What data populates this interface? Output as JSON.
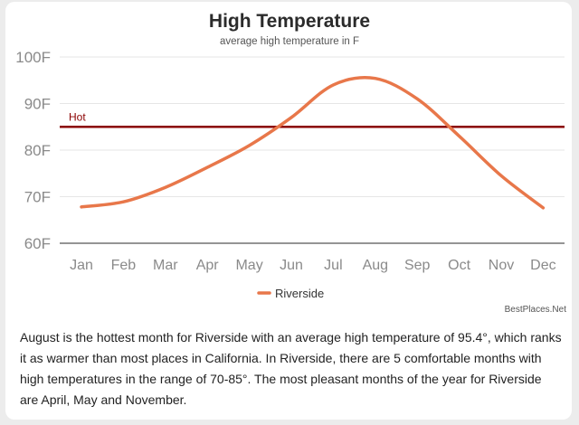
{
  "chart_data": {
    "type": "line",
    "title": "High Temperature",
    "subtitle": "average high temperature in F",
    "categories": [
      "Jan",
      "Feb",
      "Mar",
      "Apr",
      "May",
      "Jun",
      "Jul",
      "Aug",
      "Sep",
      "Oct",
      "Nov",
      "Dec"
    ],
    "series": [
      {
        "name": "Riverside",
        "color": "#e8774a",
        "values": [
          67.8,
          68.9,
          72.0,
          76.3,
          81.0,
          87.0,
          94.0,
          95.4,
          91.0,
          83.0,
          74.5,
          67.6
        ]
      }
    ],
    "ylim": [
      60,
      100
    ],
    "yticks": [
      {
        "value": 60,
        "label": "60F"
      },
      {
        "value": 70,
        "label": "70F"
      },
      {
        "value": 80,
        "label": "80F"
      },
      {
        "value": 90,
        "label": "90F"
      },
      {
        "value": 100,
        "label": "100F"
      }
    ],
    "reference_line": {
      "label": "Hot",
      "value": 85,
      "color": "#8b0000"
    },
    "grid": true,
    "legend_position": "bottom-center"
  },
  "credit": "BestPlaces.Net",
  "description": "August is the hottest month for Riverside with an average high temperature of 95.4°, which ranks it as warmer than most places in California. In Riverside, there are 5 comfortable months with high temperatures in the range of 70-85°. The most pleasant months of the year for Riverside are April, May and November."
}
